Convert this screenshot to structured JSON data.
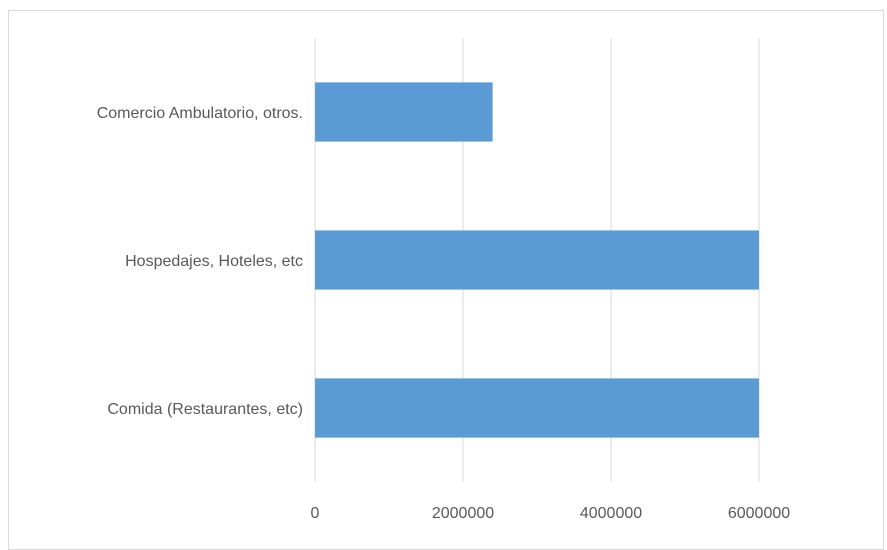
{
  "chart_data": {
    "type": "bar",
    "orientation": "horizontal",
    "categories": [
      "Comercio Ambulatorio, otros.",
      "Hospedajes, Hoteles, etc",
      "Comida (Restaurantes, etc)"
    ],
    "values": [
      2400000,
      6000000,
      6000000
    ],
    "title": "",
    "xlabel": "",
    "ylabel": "",
    "xlim": [
      0,
      6000000
    ],
    "x_ticks": [
      "0",
      "2000000",
      "4000000",
      "6000000"
    ],
    "grid": "vertical",
    "legend": "none",
    "bar_color": "#5b9bd5"
  }
}
